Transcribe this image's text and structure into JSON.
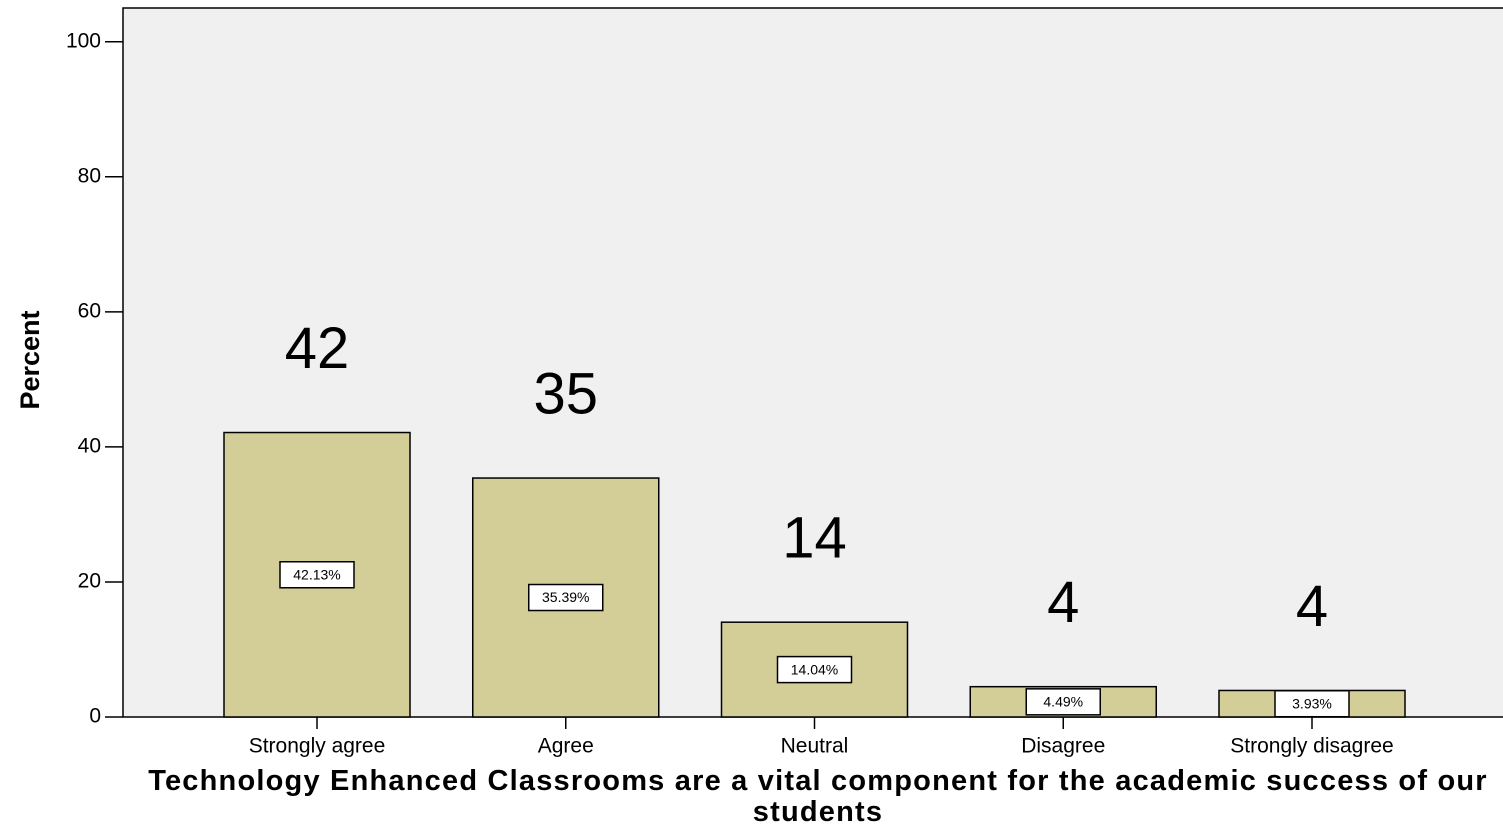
{
  "chart_data": {
    "type": "bar",
    "categories": [
      "Strongly agree",
      "Agree",
      "Neutral",
      "Disagree",
      "Strongly disagree"
    ],
    "values": [
      42.13,
      35.39,
      14.04,
      4.49,
      3.93
    ],
    "value_labels": [
      "42.13%",
      "35.39%",
      "14.04%",
      "4.49%",
      "3.93%"
    ],
    "annotations": [
      "42",
      "35",
      "14",
      "4",
      "4"
    ],
    "color": "#d3ce97",
    "ylabel": "Percent",
    "xlabel": "Technology Enhanced Classrooms are a vital component for the academic success of our students",
    "ylim": [
      0,
      105
    ],
    "yticks": [
      0,
      20,
      40,
      60,
      80,
      100
    ],
    "grid": false
  }
}
